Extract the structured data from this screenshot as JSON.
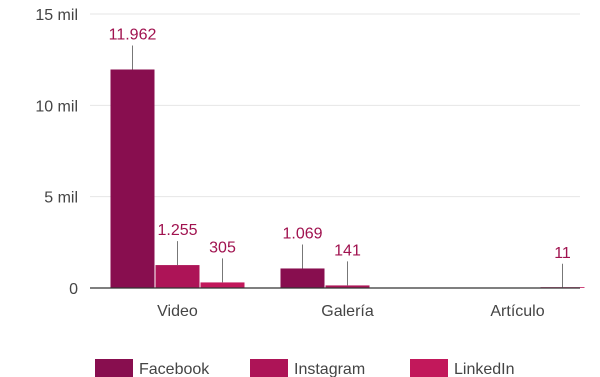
{
  "chart_data": {
    "type": "bar",
    "categories": [
      "Video",
      "Galería",
      "Artículo"
    ],
    "series": [
      {
        "name": "Facebook",
        "values": [
          11962,
          1069,
          null
        ],
        "labels": [
          "11.962",
          "1.069",
          ""
        ]
      },
      {
        "name": "Instagram",
        "values": [
          1255,
          141,
          null
        ],
        "labels": [
          "1.255",
          "141",
          ""
        ]
      },
      {
        "name": "LinkedIn",
        "values": [
          305,
          null,
          11
        ],
        "labels": [
          "305",
          "",
          "11"
        ]
      }
    ],
    "ylim": [
      0,
      15000
    ],
    "yticks": [
      0,
      5000,
      10000,
      15000
    ],
    "ytick_labels": [
      "0",
      "5 mil",
      "10 mil",
      "15 mil"
    ],
    "grid": true,
    "legend_position": "bottom",
    "colors": {
      "Facebook": "#880e4f",
      "Instagram": "#ad1457",
      "LinkedIn": "#c2185b",
      "label_text": "#a0124f",
      "grid": "#e6e6e6",
      "axis": "#333333"
    }
  }
}
